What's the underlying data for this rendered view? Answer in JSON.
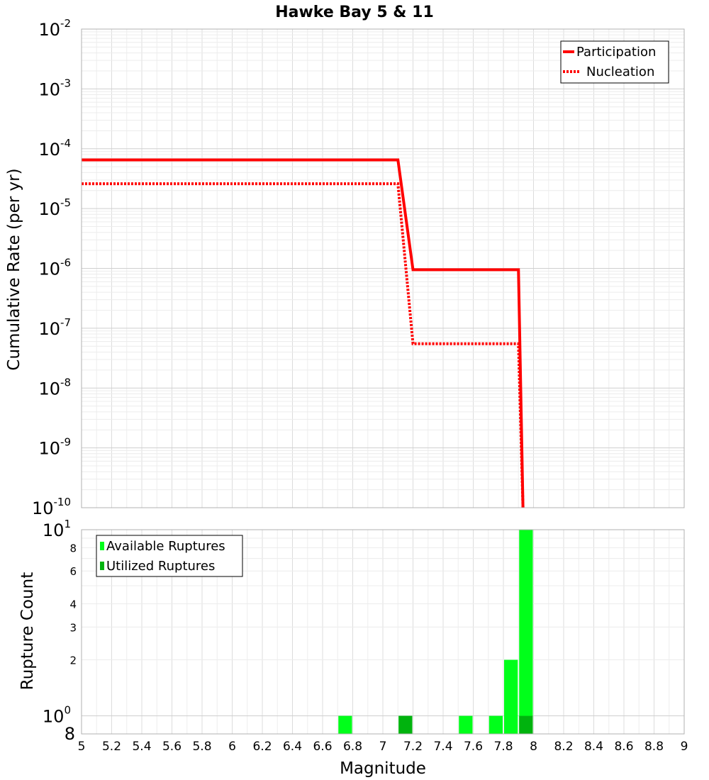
{
  "chart_data": [
    {
      "type": "line",
      "title": "Hawke Bay 5 & 11",
      "xlabel": "",
      "ylabel": "Cumulative Rate (per yr)",
      "xlim": [
        5,
        9
      ],
      "ylim": [
        1e-10,
        0.01
      ],
      "yscale": "log",
      "ytick_labels": [
        {
          "base": "10",
          "exp": "-2"
        },
        {
          "base": "10",
          "exp": "-3"
        },
        {
          "base": "10",
          "exp": "-4"
        },
        {
          "base": "10",
          "exp": "-5"
        },
        {
          "base": "10",
          "exp": "-6"
        },
        {
          "base": "10",
          "exp": "-7"
        },
        {
          "base": "10",
          "exp": "-8"
        },
        {
          "base": "10",
          "exp": "-9"
        },
        {
          "base": "10",
          "exp": "-10"
        }
      ],
      "legend_position": "top-right",
      "series": [
        {
          "name": "Participation",
          "color": "#ff0000",
          "style": "solid",
          "x": [
            5.0,
            7.1,
            7.2,
            7.9,
            7.93
          ],
          "y": [
            6.5e-05,
            6.5e-05,
            9.5e-07,
            9.5e-07,
            1e-10
          ]
        },
        {
          "name": "Nucleation",
          "color": "#ff0000",
          "style": "dotted",
          "x": [
            5.0,
            7.1,
            7.2,
            7.9,
            7.93
          ],
          "y": [
            2.6e-05,
            2.6e-05,
            5.5e-08,
            5.5e-08,
            1e-10
          ]
        }
      ]
    },
    {
      "type": "bar",
      "xlabel": "Magnitude",
      "ylabel": "Rupture Count",
      "xlim": [
        5,
        9
      ],
      "ylim": [
        0.8,
        10
      ],
      "yscale": "log",
      "bar_width": 0.1,
      "x_ticks": [
        "5",
        "5.2",
        "5.4",
        "5.6",
        "5.8",
        "6",
        "6.2",
        "6.4",
        "6.6",
        "6.8",
        "7",
        "7.2",
        "7.4",
        "7.6",
        "7.8",
        "8",
        "8.2",
        "8.4",
        "8.6",
        "8.8",
        "9"
      ],
      "y_major_labels": [
        {
          "base": "10",
          "exp": "1",
          "value": 10
        },
        {
          "base": "10",
          "exp": "0",
          "value": 1
        }
      ],
      "y_minor_labels": [
        "8",
        "6",
        "4",
        "3",
        "2"
      ],
      "y_minor_values": [
        8,
        6,
        4,
        3,
        2
      ],
      "y_bottom_label": "8",
      "legend_position": "top-left",
      "series": [
        {
          "name": "Available Ruptures",
          "color": "#00ff1a",
          "x": [
            6.75,
            7.15,
            7.55,
            7.75,
            7.85,
            7.95
          ],
          "values": [
            1,
            1,
            1,
            1,
            2,
            10
          ]
        },
        {
          "name": "Utilized Ruptures",
          "color": "#00b30e",
          "x": [
            7.15,
            7.95
          ],
          "values": [
            1,
            1
          ]
        }
      ]
    }
  ]
}
